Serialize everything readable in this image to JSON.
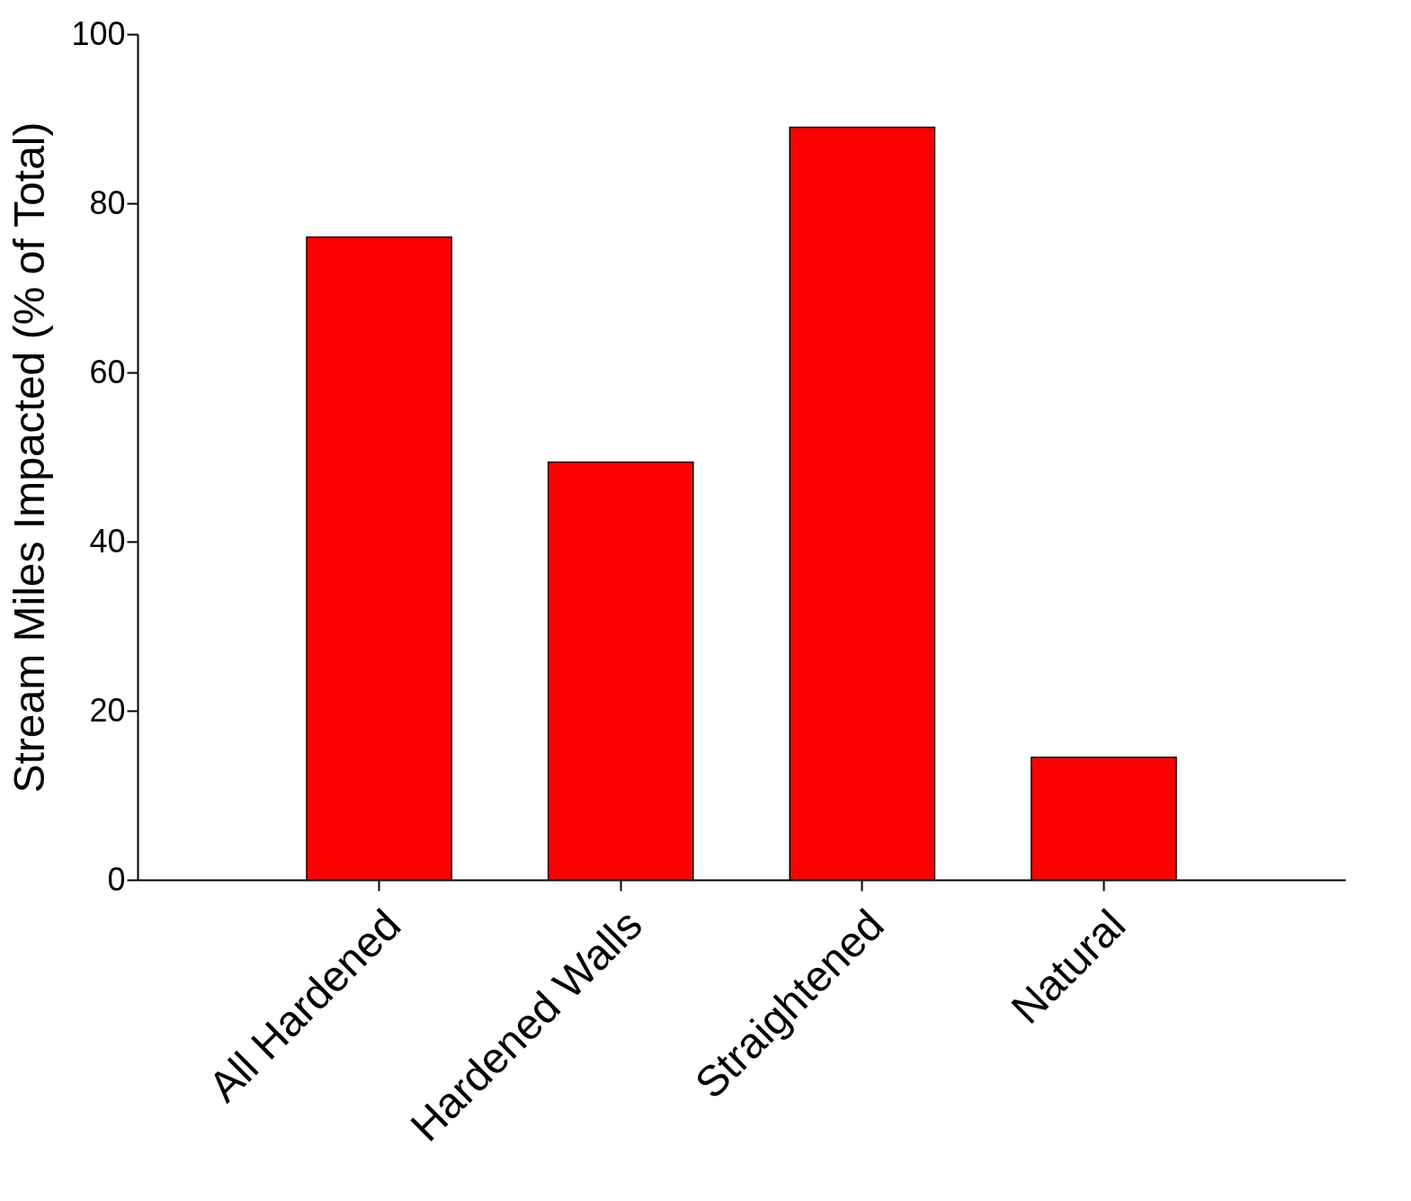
{
  "chart_data": {
    "type": "bar",
    "ylabel": "Stream Miles Impacted (% of Total)",
    "categories": [
      "All Hardened",
      "Hardened Walls",
      "Straightened",
      "Natural"
    ],
    "values": [
      76,
      49.4,
      89,
      14.5
    ],
    "color": "#ff0000",
    "ylim": [
      0,
      100
    ],
    "yticks": [
      0,
      20,
      40,
      60,
      80,
      100
    ],
    "grid": false
  }
}
